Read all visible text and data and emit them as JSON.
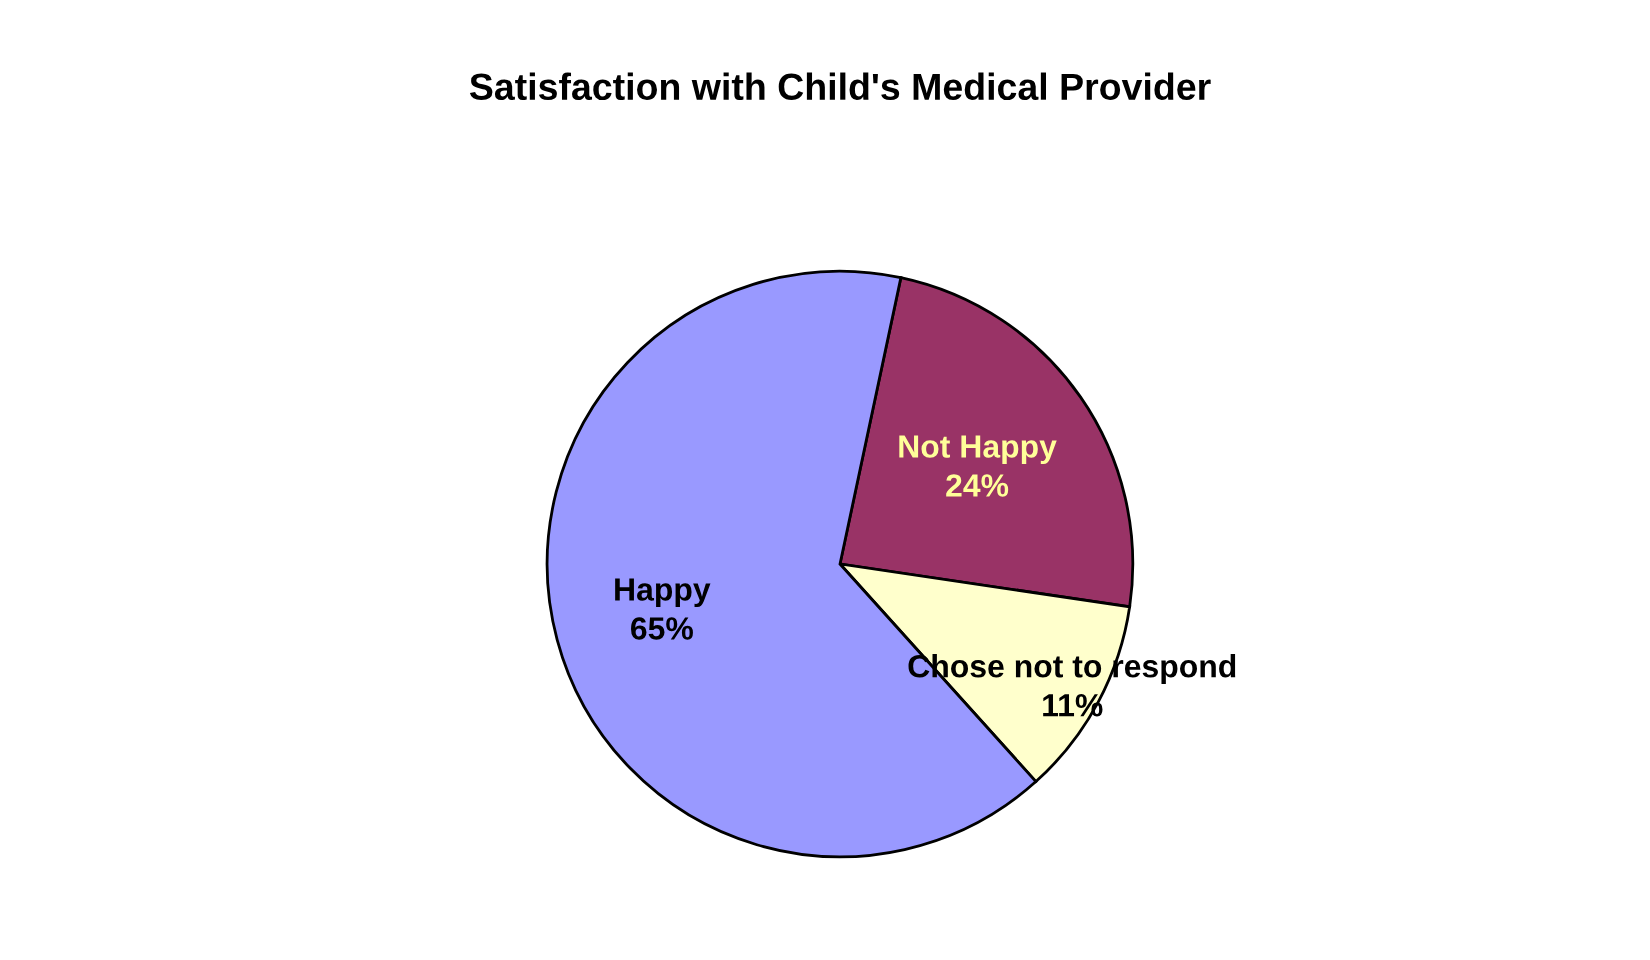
{
  "chart_data": {
    "type": "pie",
    "title": "Satisfaction with Child's Medical Provider",
    "categories": [
      "Not Happy",
      "Chose not to respond",
      "Happy"
    ],
    "values": [
      24,
      11,
      65
    ],
    "colors": [
      "#993366",
      "#ffffcc",
      "#9999ff"
    ],
    "value_labels": [
      "24%",
      "11%",
      "65%"
    ],
    "legend": false
  }
}
